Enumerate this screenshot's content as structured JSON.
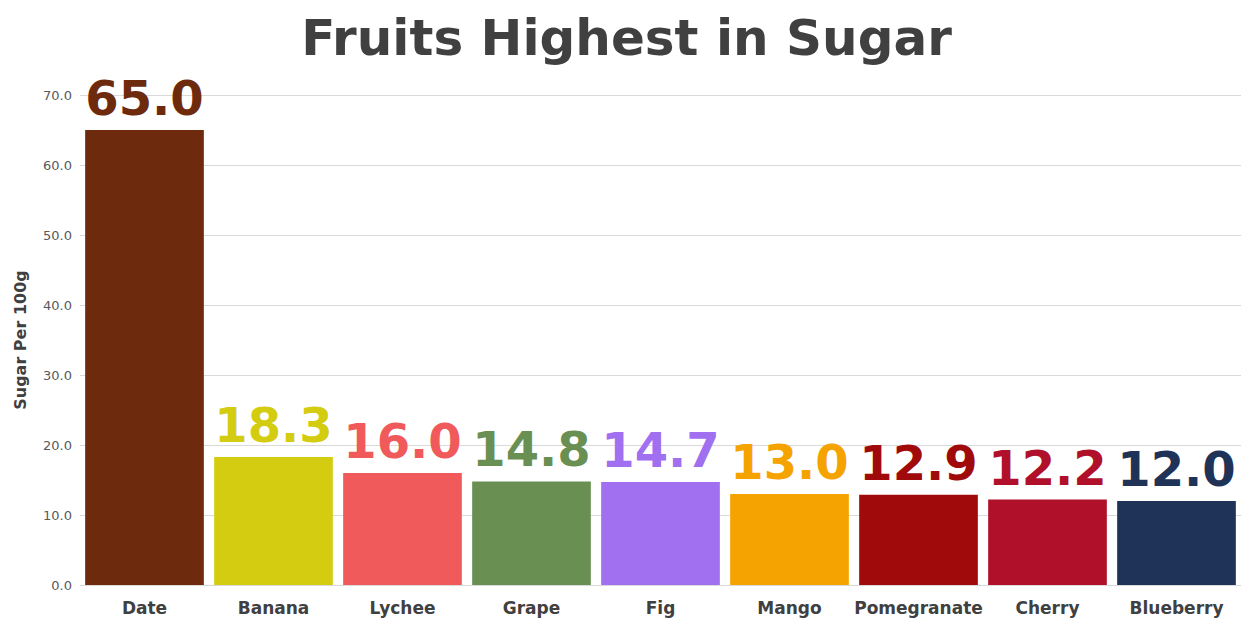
{
  "chart_data": {
    "type": "bar",
    "title": "Fruits Highest in Sugar",
    "y_label": "Sugar Per 100g",
    "categories": [
      "Date",
      "Banana",
      "Lychee",
      "Grape",
      "Fig",
      "Mango",
      "Pomegranate",
      "Cherry",
      "Blueberry"
    ],
    "values": [
      65.0,
      18.3,
      16.0,
      14.8,
      14.7,
      13.0,
      12.9,
      12.2,
      12.0
    ],
    "value_labels": [
      "65.0",
      "18.3",
      "16.0",
      "14.8",
      "14.7",
      "13.0",
      "12.9",
      "12.2",
      "12.0"
    ],
    "colors": [
      "#6e2a0c",
      "#d4cc10",
      "#f05a5a",
      "#6a8f52",
      "#a070f0",
      "#f5a300",
      "#a00a0a",
      "#b0102a",
      "#1f3358"
    ],
    "ylim": [
      0,
      70
    ],
    "yticks": [
      {
        "value": 0,
        "label": "0.0"
      },
      {
        "value": 10,
        "label": "10.0"
      },
      {
        "value": 20,
        "label": "20.0"
      },
      {
        "value": 30,
        "label": "30.0"
      },
      {
        "value": 40,
        "label": "40.0"
      },
      {
        "value": 50,
        "label": "50.0"
      },
      {
        "value": 60,
        "label": "60.0"
      },
      {
        "value": 70,
        "label": "70.0"
      }
    ],
    "grid": true,
    "data_labels": true
  }
}
